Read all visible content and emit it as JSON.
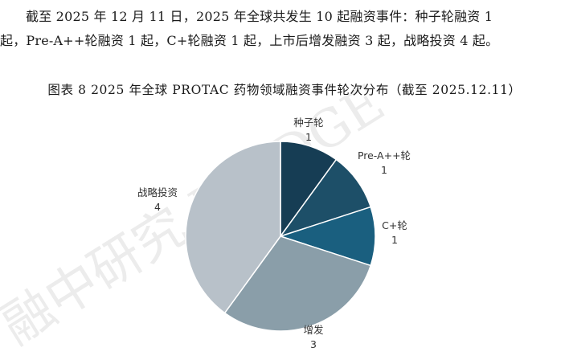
{
  "paragraph": {
    "line1": "截至 2025 年 12 月 11 日，2025 年全球共发生 10 起融资事件：种子轮融资 1",
    "line2": "起，Pre-A++轮融资 1 起，C+轮融资 1 起，上市后增发融资 3 起，战略投资 4 起。"
  },
  "figure_caption": "图表  8 2025 年全球 PROTAC 药物领域融资事件轮次分布（截至 2025.12.11）",
  "watermark": {
    "text": "融中研究 BRIDGE",
    "color": "#ececec"
  },
  "chart_data": {
    "type": "pie",
    "title": "",
    "start_angle_deg": 0,
    "direction": "clockwise",
    "slices": [
      {
        "label": "种子轮",
        "value": 1,
        "color": "#163d54"
      },
      {
        "label": "Pre-A++轮",
        "value": 1,
        "color": "#1d4f68"
      },
      {
        "label": "C+轮",
        "value": 1,
        "color": "#1a5f7f"
      },
      {
        "label": "增发",
        "value": 3,
        "color": "#8a9ea9"
      },
      {
        "label": "战略投资",
        "value": 4,
        "color": "#b8c1c9"
      }
    ]
  }
}
